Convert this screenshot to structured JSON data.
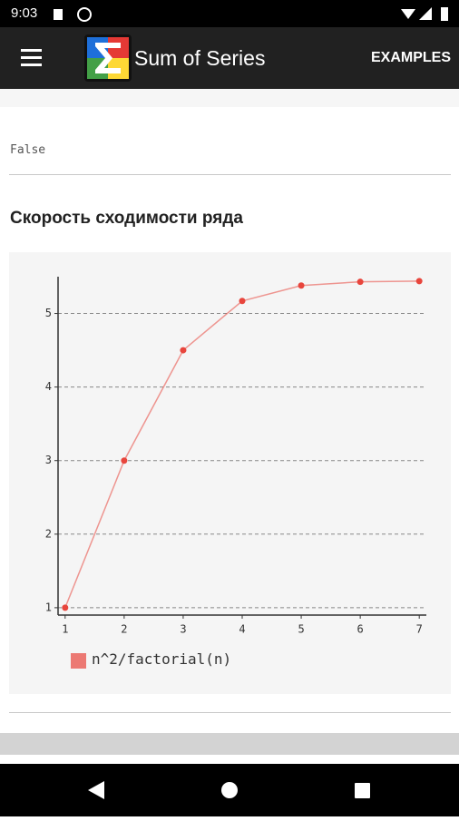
{
  "status_bar": {
    "time": "9:03"
  },
  "app_bar": {
    "title": "Sum of Series",
    "action": "EXAMPLES"
  },
  "result": {
    "text": "False"
  },
  "section": {
    "title": "Скорость сходимости ряда"
  },
  "chart_data": {
    "type": "line",
    "x": [
      1,
      2,
      3,
      4,
      5,
      6,
      7
    ],
    "series": [
      {
        "name": "n^2/factorial(n)",
        "color": "#e8453c",
        "values": [
          1,
          3,
          4.5,
          5.17,
          5.38,
          5.43,
          5.44
        ]
      }
    ],
    "xlim": [
      0.88,
      7.12
    ],
    "ylim": [
      0.9,
      5.5
    ],
    "xticks": [
      1,
      2,
      3,
      4,
      5,
      6,
      7
    ],
    "yticks": [
      1,
      2,
      3,
      4,
      5
    ],
    "grid": true
  }
}
